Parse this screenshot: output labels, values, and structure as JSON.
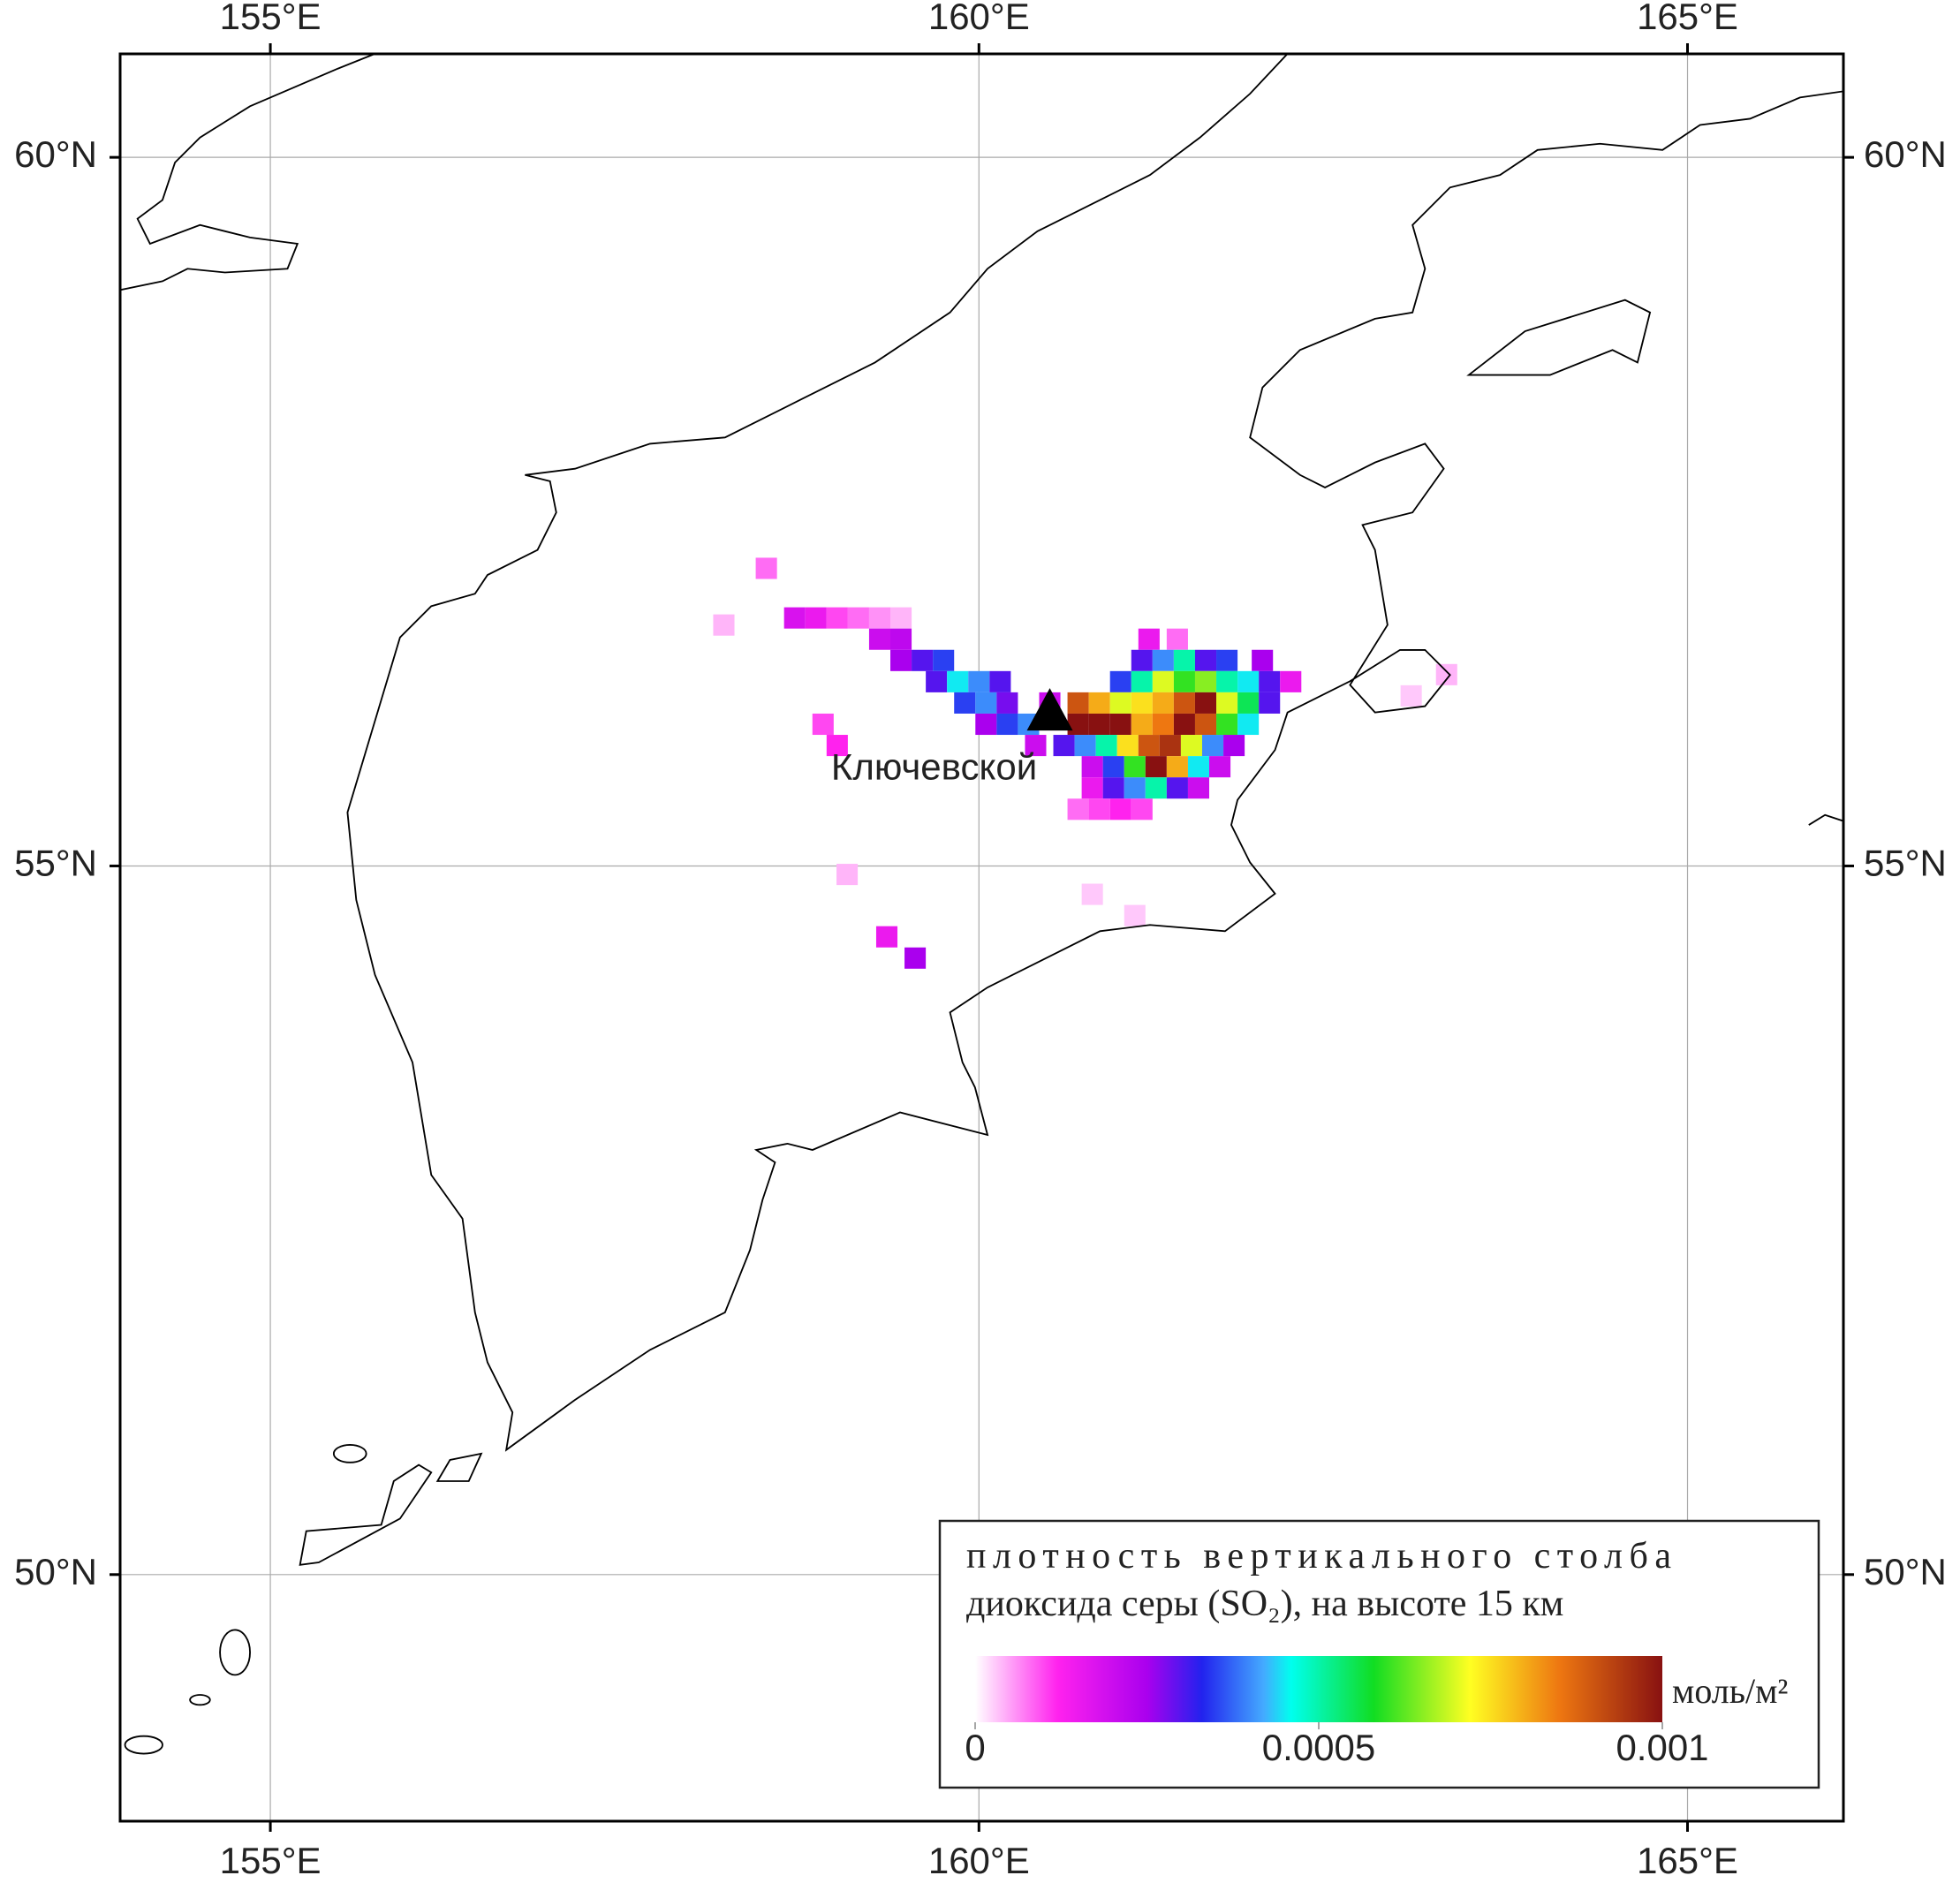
{
  "map": {
    "xlim": [
      153.94,
      166.1
    ],
    "ylim": [
      48.26,
      60.73
    ],
    "xticks": [
      {
        "value": 155,
        "label": "155°E"
      },
      {
        "value": 160,
        "label": "160°E"
      },
      {
        "value": 165,
        "label": "165°E"
      }
    ],
    "yticks": [
      {
        "value": 50,
        "label": "50°N"
      },
      {
        "value": 55,
        "label": "55°N"
      },
      {
        "value": 60,
        "label": "60°N"
      }
    ],
    "volcano": {
      "name": "Ключевской",
      "lon": 160.5,
      "lat": 56.08
    },
    "legend": {
      "title": [
        "плотность вертикального столба",
        "диоксида серы (SO₂), на высоте 15 км"
      ],
      "unit": "моль/м²",
      "lim": [
        0,
        0.001
      ],
      "ticks": [
        0,
        0.0005,
        0.001
      ]
    },
    "so2": [
      {
        "lon": 158.7,
        "lat": 56.75,
        "value": 0.00018
      },
      {
        "lon": 158.85,
        "lat": 56.75,
        "value": 0.00015
      },
      {
        "lon": 159.0,
        "lat": 56.75,
        "value": 0.0001
      },
      {
        "lon": 159.15,
        "lat": 56.75,
        "value": 8e-05
      },
      {
        "lon": 159.3,
        "lat": 56.75,
        "value": 6e-05
      },
      {
        "lon": 159.45,
        "lat": 56.75,
        "value": 4e-05
      },
      {
        "lon": 159.3,
        "lat": 56.6,
        "value": 0.0002
      },
      {
        "lon": 159.45,
        "lat": 56.6,
        "value": 0.00022
      },
      {
        "lon": 161.2,
        "lat": 56.6,
        "value": 0.00015
      },
      {
        "lon": 161.4,
        "lat": 56.6,
        "value": 8e-05
      },
      {
        "lon": 159.45,
        "lat": 56.45,
        "value": 0.00025
      },
      {
        "lon": 159.6,
        "lat": 56.45,
        "value": 0.0003
      },
      {
        "lon": 159.75,
        "lat": 56.45,
        "value": 0.00035
      },
      {
        "lon": 161.15,
        "lat": 56.45,
        "value": 0.0003
      },
      {
        "lon": 161.3,
        "lat": 56.45,
        "value": 0.0004
      },
      {
        "lon": 161.45,
        "lat": 56.45,
        "value": 0.0005
      },
      {
        "lon": 161.6,
        "lat": 56.45,
        "value": 0.0003
      },
      {
        "lon": 161.75,
        "lat": 56.45,
        "value": 0.00035
      },
      {
        "lon": 162.0,
        "lat": 56.45,
        "value": 0.00025
      },
      {
        "lon": 159.7,
        "lat": 56.3,
        "value": 0.0003
      },
      {
        "lon": 159.85,
        "lat": 56.3,
        "value": 0.00045
      },
      {
        "lon": 160.0,
        "lat": 56.3,
        "value": 0.0004
      },
      {
        "lon": 160.15,
        "lat": 56.3,
        "value": 0.0003
      },
      {
        "lon": 161.0,
        "lat": 56.3,
        "value": 0.00035
      },
      {
        "lon": 161.15,
        "lat": 56.3,
        "value": 0.0005
      },
      {
        "lon": 161.3,
        "lat": 56.3,
        "value": 0.0007
      },
      {
        "lon": 161.45,
        "lat": 56.3,
        "value": 0.0006
      },
      {
        "lon": 161.6,
        "lat": 56.3,
        "value": 0.00065
      },
      {
        "lon": 161.75,
        "lat": 56.3,
        "value": 0.0005
      },
      {
        "lon": 161.9,
        "lat": 56.3,
        "value": 0.00045
      },
      {
        "lon": 162.05,
        "lat": 56.3,
        "value": 0.0003
      },
      {
        "lon": 162.2,
        "lat": 56.3,
        "value": 0.00015
      },
      {
        "lon": 159.9,
        "lat": 56.15,
        "value": 0.00035
      },
      {
        "lon": 160.05,
        "lat": 56.15,
        "value": 0.0004
      },
      {
        "lon": 160.2,
        "lat": 56.15,
        "value": 0.00028
      },
      {
        "lon": 160.5,
        "lat": 56.15,
        "value": 0.0002
      },
      {
        "lon": 160.7,
        "lat": 56.15,
        "value": 0.0009
      },
      {
        "lon": 160.85,
        "lat": 56.15,
        "value": 0.0008
      },
      {
        "lon": 161.0,
        "lat": 56.15,
        "value": 0.0007
      },
      {
        "lon": 161.15,
        "lat": 56.15,
        "value": 0.00075
      },
      {
        "lon": 161.3,
        "lat": 56.15,
        "value": 0.0008
      },
      {
        "lon": 161.45,
        "lat": 56.15,
        "value": 0.0009
      },
      {
        "lon": 161.6,
        "lat": 56.15,
        "value": 0.001
      },
      {
        "lon": 161.75,
        "lat": 56.15,
        "value": 0.0007
      },
      {
        "lon": 161.9,
        "lat": 56.15,
        "value": 0.00055
      },
      {
        "lon": 162.05,
        "lat": 56.15,
        "value": 0.0003
      },
      {
        "lon": 160.05,
        "lat": 56.0,
        "value": 0.00025
      },
      {
        "lon": 160.2,
        "lat": 56.0,
        "value": 0.00035
      },
      {
        "lon": 160.35,
        "lat": 56.0,
        "value": 0.0004
      },
      {
        "lon": 160.7,
        "lat": 56.0,
        "value": 0.001
      },
      {
        "lon": 160.85,
        "lat": 56.0,
        "value": 0.001
      },
      {
        "lon": 161.0,
        "lat": 56.0,
        "value": 0.001
      },
      {
        "lon": 161.15,
        "lat": 56.0,
        "value": 0.0008
      },
      {
        "lon": 161.3,
        "lat": 56.0,
        "value": 0.00085
      },
      {
        "lon": 161.45,
        "lat": 56.0,
        "value": 0.001
      },
      {
        "lon": 161.6,
        "lat": 56.0,
        "value": 0.0009
      },
      {
        "lon": 161.75,
        "lat": 56.0,
        "value": 0.0006
      },
      {
        "lon": 161.9,
        "lat": 56.0,
        "value": 0.00045
      },
      {
        "lon": 160.4,
        "lat": 55.85,
        "value": 0.0002
      },
      {
        "lon": 160.6,
        "lat": 55.85,
        "value": 0.0003
      },
      {
        "lon": 160.75,
        "lat": 55.85,
        "value": 0.0004
      },
      {
        "lon": 160.9,
        "lat": 55.85,
        "value": 0.0005
      },
      {
        "lon": 161.05,
        "lat": 55.85,
        "value": 0.00075
      },
      {
        "lon": 161.2,
        "lat": 55.85,
        "value": 0.0009
      },
      {
        "lon": 161.35,
        "lat": 55.85,
        "value": 0.00095
      },
      {
        "lon": 161.5,
        "lat": 55.85,
        "value": 0.0007
      },
      {
        "lon": 161.65,
        "lat": 55.85,
        "value": 0.0004
      },
      {
        "lon": 161.8,
        "lat": 55.85,
        "value": 0.00025
      },
      {
        "lon": 160.8,
        "lat": 55.7,
        "value": 0.0002
      },
      {
        "lon": 160.95,
        "lat": 55.7,
        "value": 0.00035
      },
      {
        "lon": 161.1,
        "lat": 55.7,
        "value": 0.0006
      },
      {
        "lon": 161.25,
        "lat": 55.7,
        "value": 0.001
      },
      {
        "lon": 161.4,
        "lat": 55.7,
        "value": 0.0008
      },
      {
        "lon": 161.55,
        "lat": 55.7,
        "value": 0.00045
      },
      {
        "lon": 161.7,
        "lat": 55.7,
        "value": 0.0002
      },
      {
        "lon": 160.8,
        "lat": 55.55,
        "value": 0.00015
      },
      {
        "lon": 160.95,
        "lat": 55.55,
        "value": 0.0003
      },
      {
        "lon": 161.1,
        "lat": 55.55,
        "value": 0.0004
      },
      {
        "lon": 161.25,
        "lat": 55.55,
        "value": 0.0005
      },
      {
        "lon": 161.4,
        "lat": 55.55,
        "value": 0.0003
      },
      {
        "lon": 161.55,
        "lat": 55.55,
        "value": 0.0002
      },
      {
        "lon": 160.7,
        "lat": 55.4,
        "value": 8e-05
      },
      {
        "lon": 160.85,
        "lat": 55.4,
        "value": 0.0001
      },
      {
        "lon": 161.0,
        "lat": 55.4,
        "value": 0.00012
      },
      {
        "lon": 161.15,
        "lat": 55.4,
        "value": 0.0001
      },
      {
        "lon": 158.5,
        "lat": 57.1,
        "value": 8e-05
      },
      {
        "lon": 158.2,
        "lat": 56.7,
        "value": 4e-05
      },
      {
        "lon": 158.9,
        "lat": 56.0,
        "value": 0.0001
      },
      {
        "lon": 159.0,
        "lat": 55.85,
        "value": 0.00012
      },
      {
        "lon": 159.35,
        "lat": 54.5,
        "value": 0.00015
      },
      {
        "lon": 159.55,
        "lat": 54.35,
        "value": 0.00025
      },
      {
        "lon": 160.8,
        "lat": 54.8,
        "value": 3e-05
      },
      {
        "lon": 161.1,
        "lat": 54.65,
        "value": 3e-05
      },
      {
        "lon": 163.3,
        "lat": 56.35,
        "value": 4e-05
      },
      {
        "lon": 163.05,
        "lat": 56.2,
        "value": 3e-05
      },
      {
        "lon": 159.07,
        "lat": 54.94,
        "value": 4e-05
      }
    ]
  }
}
